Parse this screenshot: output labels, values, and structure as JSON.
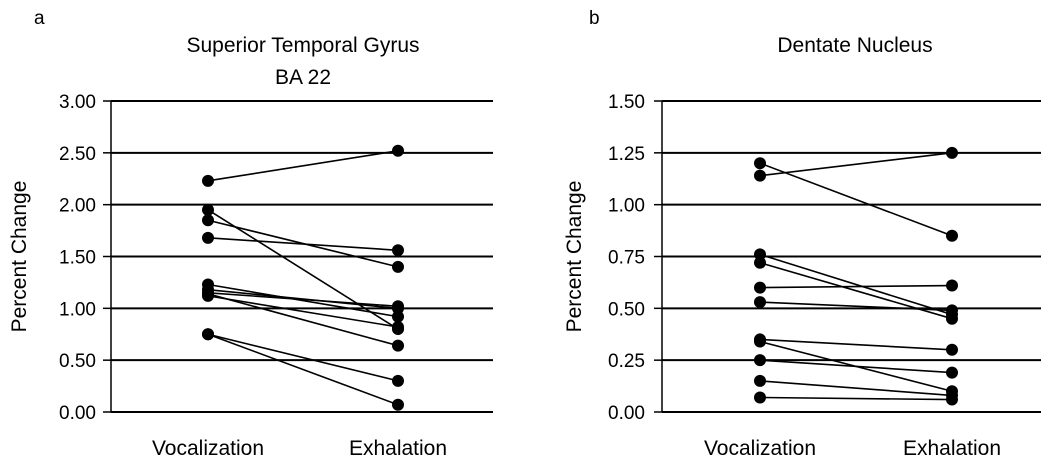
{
  "chart_data": [
    {
      "panel": "a",
      "type": "line",
      "title": "Superior Temporal Gyrus",
      "subtitle": "BA 22",
      "ylabel": "Percent Change",
      "xlabel": "",
      "categories": [
        "Vocalization",
        "Exhalation"
      ],
      "ylim": [
        0,
        3.0
      ],
      "yticks": [
        "0.00",
        "0.50",
        "1.00",
        "1.50",
        "2.00",
        "2.50",
        "3.00"
      ],
      "grid": true,
      "series": [
        {
          "values": [
            2.23,
            2.52
          ]
        },
        {
          "values": [
            1.95,
            0.8
          ]
        },
        {
          "values": [
            1.85,
            1.4
          ]
        },
        {
          "values": [
            1.68,
            1.56
          ]
        },
        {
          "values": [
            1.23,
            0.92
          ]
        },
        {
          "values": [
            1.18,
            1.0
          ]
        },
        {
          "values": [
            1.15,
            1.02
          ]
        },
        {
          "values": [
            1.12,
            0.82
          ]
        },
        {
          "values": [
            1.14,
            0.64
          ]
        },
        {
          "values": [
            0.75,
            0.3
          ]
        },
        {
          "values": [
            0.75,
            0.07
          ]
        }
      ]
    },
    {
      "panel": "b",
      "type": "line",
      "title": "Dentate Nucleus",
      "subtitle": "",
      "ylabel": "Percent Change",
      "xlabel": "",
      "categories": [
        "Vocalization",
        "Exhalation"
      ],
      "ylim": [
        0,
        1.5
      ],
      "yticks": [
        "0.00",
        "0.25",
        "0.50",
        "0.75",
        "1.00",
        "1.25",
        "1.50"
      ],
      "grid": true,
      "series": [
        {
          "values": [
            1.2,
            0.85
          ]
        },
        {
          "values": [
            1.14,
            1.25
          ]
        },
        {
          "values": [
            0.76,
            0.47
          ]
        },
        {
          "values": [
            0.72,
            0.45
          ]
        },
        {
          "values": [
            0.6,
            0.61
          ]
        },
        {
          "values": [
            0.53,
            0.49
          ]
        },
        {
          "values": [
            0.35,
            0.3
          ]
        },
        {
          "values": [
            0.34,
            0.1
          ]
        },
        {
          "values": [
            0.25,
            0.19
          ]
        },
        {
          "values": [
            0.15,
            0.08
          ]
        },
        {
          "values": [
            0.07,
            0.06
          ]
        }
      ]
    }
  ]
}
